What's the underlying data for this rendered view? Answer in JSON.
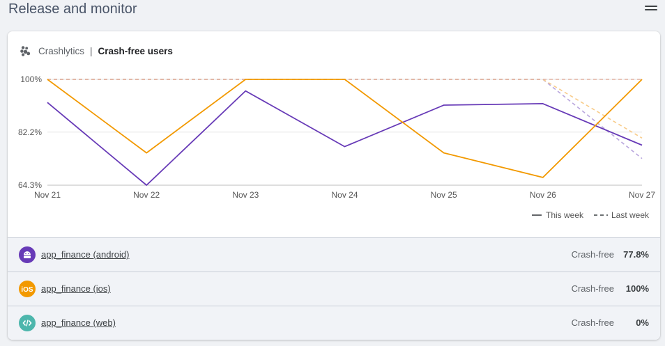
{
  "page": {
    "title": "Release and monitor"
  },
  "card": {
    "product": "Crashlytics",
    "separator": "|",
    "metric": "Crash-free users"
  },
  "chart_data": {
    "type": "line",
    "title": "Crash-free users",
    "categories": [
      "Nov 21",
      "Nov 22",
      "Nov 23",
      "Nov 24",
      "Nov 25",
      "Nov 26",
      "Nov 27"
    ],
    "y_ticks": [
      100,
      82.2,
      64.3
    ],
    "y_tick_labels": [
      "100%",
      "82.2%",
      "64.3%"
    ],
    "ylim": [
      64.3,
      100
    ],
    "grid": true,
    "legend": [
      {
        "label": "This week",
        "style": "solid"
      },
      {
        "label": "Last week",
        "style": "dashed"
      }
    ],
    "series": [
      {
        "name": "android (this week)",
        "color": "#673ab7",
        "style": "solid",
        "values": [
          92.2,
          64.3,
          96.1,
          77.3,
          91.3,
          91.8,
          77.8
        ]
      },
      {
        "name": "ios (this week)",
        "color": "#f29900",
        "style": "solid",
        "values": [
          100,
          75.2,
          100,
          100,
          75.2,
          66.9,
          100
        ]
      },
      {
        "name": "android (last week)",
        "color": "#b9a6dd",
        "style": "dashed",
        "values": [
          100,
          100,
          100,
          100,
          100,
          100,
          73.3
        ]
      },
      {
        "name": "ios (last week)",
        "color": "#f8cc8a",
        "style": "dashed",
        "values": [
          100,
          100,
          100,
          100,
          100,
          100,
          80.2
        ]
      },
      {
        "name": "web (last week)",
        "color": "#e0b0a0",
        "style": "dashed",
        "values": [
          100,
          100,
          100,
          100,
          100,
          100,
          100
        ]
      }
    ]
  },
  "apps": [
    {
      "name": "app_finance (android)",
      "icon": "android-icon",
      "color": "#673ab7",
      "label": "Crash-free",
      "value": "77.8%"
    },
    {
      "name": "app_finance (ios)",
      "icon": "ios-icon",
      "color": "#f29900",
      "label": "Crash-free",
      "value": "100%"
    },
    {
      "name": "app_finance (web)",
      "icon": "web-code-icon",
      "color": "#4db6ac",
      "label": "Crash-free",
      "value": "0%"
    }
  ]
}
